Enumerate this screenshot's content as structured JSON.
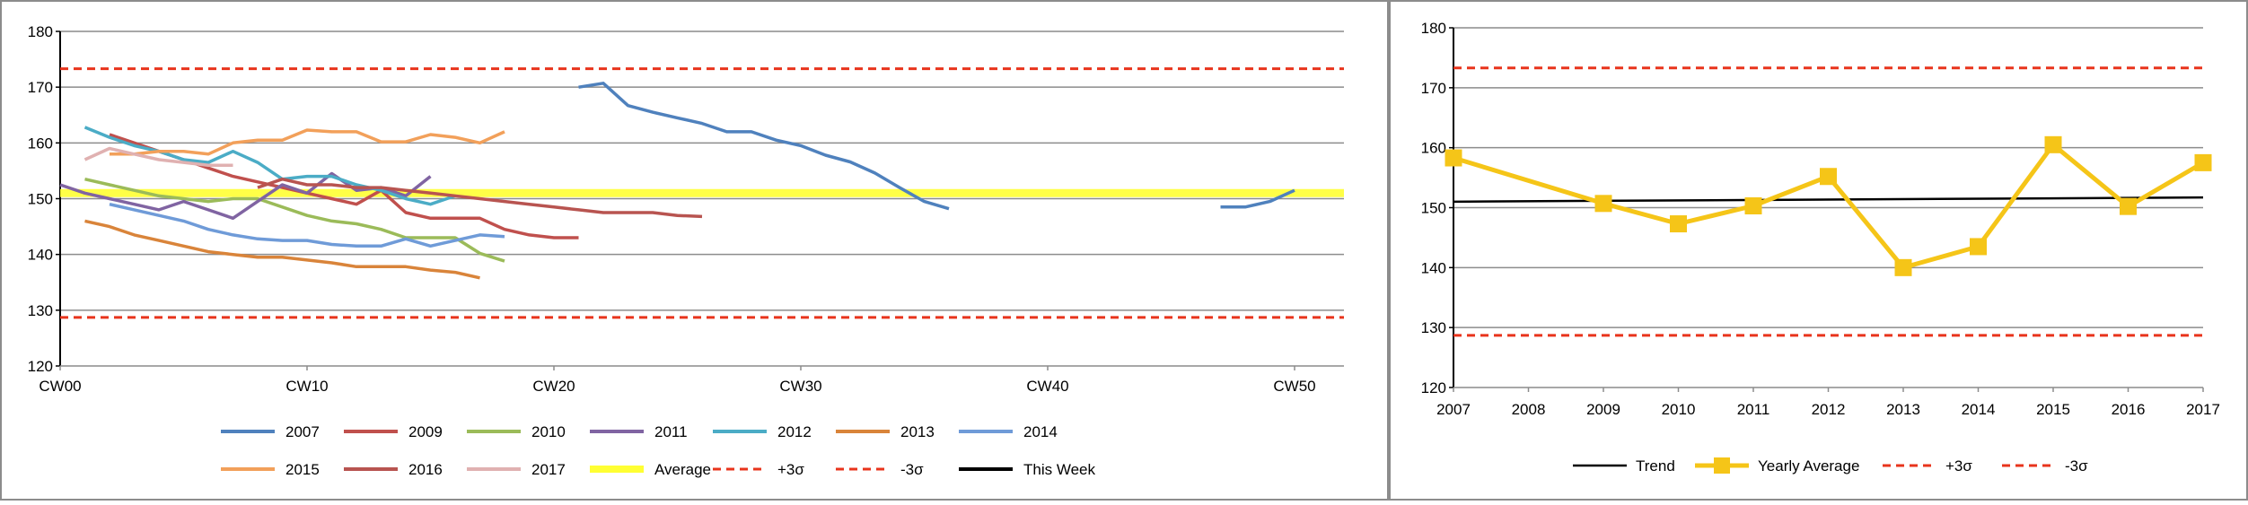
{
  "colors": {
    "grid": "#8c8c8c",
    "axis": "#000000",
    "panel_border": "#8c8c8c",
    "sigma": "#e8341c",
    "average": "#ffff33",
    "trend": "#000000",
    "yearly_average": "#f5c518"
  },
  "chart_data": [
    {
      "type": "line",
      "title": "",
      "xlabel": "",
      "ylabel": "",
      "xlim": [
        0,
        52
      ],
      "ylim": [
        120,
        180
      ],
      "yticks": [
        120,
        130,
        140,
        150,
        160,
        170,
        180
      ],
      "xticks": [
        {
          "x": 0,
          "label": "CW00"
        },
        {
          "x": 10,
          "label": "CW10"
        },
        {
          "x": 20,
          "label": "CW20"
        },
        {
          "x": 30,
          "label": "CW30"
        },
        {
          "x": 40,
          "label": "CW40"
        },
        {
          "x": 50,
          "label": "CW50"
        }
      ],
      "grid": true,
      "legend_position": "bottom",
      "series": [
        {
          "name": "2007",
          "color": "#4f81bd",
          "segments": [
            {
              "x0": 21,
              "values": [
                170,
                170.7,
                166.7,
                165.5,
                164.5,
                163.5,
                162,
                162,
                160.5,
                159.5,
                157.8,
                156.6,
                154.6,
                152,
                149.5,
                148.2
              ]
            },
            {
              "x0": 47,
              "values": [
                148.5,
                148.5,
                149.5,
                151.5
              ]
            }
          ]
        },
        {
          "name": "2009",
          "color": "#c0504d",
          "segments": [
            {
              "x0": 2,
              "values": [
                161.5,
                160,
                158.5,
                157,
                155.5,
                154,
                153,
                152,
                151,
                150,
                149,
                151.5,
                147.5,
                146.5,
                146.5,
                146.5,
                144.5,
                143.5,
                143,
                143
              ]
            }
          ]
        },
        {
          "name": "2010",
          "color": "#9bbb59",
          "segments": [
            {
              "x0": 1,
              "values": [
                153.5,
                152.5,
                151.5,
                150.5,
                150,
                149.5,
                150,
                150,
                148.5,
                147,
                146,
                145.5,
                144.5,
                143,
                143,
                143,
                140.2,
                138.8
              ]
            }
          ]
        },
        {
          "name": "2011",
          "color": "#8064a2",
          "segments": [
            {
              "x0": 0,
              "values": [
                152.5,
                151,
                150,
                149,
                148,
                149.5,
                148,
                146.5,
                149.5,
                152.5,
                151,
                154.5,
                151.5,
                152,
                150.5,
                154
              ]
            }
          ]
        },
        {
          "name": "2012",
          "color": "#4bacc6",
          "segments": [
            {
              "x0": 1,
              "values": [
                162.8,
                161,
                159.5,
                158.5,
                157,
                156.5,
                158.5,
                156.5,
                153.5,
                154,
                154,
                152.5,
                151.5,
                150,
                149,
                150.5
              ]
            }
          ]
        },
        {
          "name": "2013",
          "color": "#d9843a",
          "segments": [
            {
              "x0": 1,
              "values": [
                146,
                145,
                143.5,
                142.5,
                141.5,
                140.5,
                140,
                139.5,
                139.5,
                139,
                138.5,
                137.8,
                137.8,
                137.8,
                137.2,
                136.8,
                135.8
              ]
            }
          ]
        },
        {
          "name": "2014",
          "color": "#6f9bd8",
          "segments": [
            {
              "x0": 2,
              "values": [
                149,
                148,
                147,
                146,
                144.5,
                143.5,
                142.8,
                142.5,
                142.5,
                141.8,
                141.5,
                141.5,
                142.8,
                141.5,
                142.5,
                143.5,
                143.2
              ]
            }
          ]
        },
        {
          "name": "2015",
          "color": "#f2a05a",
          "segments": [
            {
              "x0": 2,
              "values": [
                158,
                158,
                158.5,
                158.5,
                158,
                160,
                160.5,
                160.5,
                162.3,
                162,
                162,
                160.2,
                160.2,
                161.5,
                161,
                160,
                162
              ]
            }
          ]
        },
        {
          "name": "2016",
          "color": "#b85450",
          "segments": [
            {
              "x0": 8,
              "values": [
                152,
                153.5,
                152.5,
                152.5,
                152,
                152,
                151.5,
                151,
                150.5,
                150,
                149.5,
                149,
                148.5,
                148,
                147.5,
                147.5,
                147.5,
                147,
                146.8
              ]
            }
          ]
        },
        {
          "name": "2017",
          "color": "#e0b1b1",
          "segments": [
            {
              "x0": 1,
              "values": [
                157,
                159,
                158,
                157,
                156.5,
                156,
                156
              ]
            }
          ]
        },
        {
          "name": "Average",
          "color": "#ffff33",
          "constant": 151,
          "x_from": 0,
          "x_to": 52,
          "style": "thick"
        },
        {
          "name": "+3σ",
          "color": "#e8341c",
          "constant": 173.3,
          "x_from": 0,
          "x_to": 52,
          "style": "dashed"
        },
        {
          "name": "-3σ",
          "color": "#e8341c",
          "constant": 128.7,
          "x_from": 0,
          "x_to": 52,
          "style": "dashed"
        },
        {
          "name": "This Week",
          "color": "#000000",
          "segments": []
        }
      ]
    },
    {
      "type": "line",
      "title": "",
      "xlabel": "",
      "ylabel": "",
      "xlim": [
        2007,
        2017
      ],
      "ylim": [
        120,
        180
      ],
      "yticks": [
        120,
        130,
        140,
        150,
        160,
        170,
        180
      ],
      "categories": [
        "2007",
        "2008",
        "2009",
        "2010",
        "2011",
        "2012",
        "2013",
        "2014",
        "2015",
        "2016",
        "2017"
      ],
      "grid": true,
      "legend_position": "bottom",
      "series": [
        {
          "name": "Trend",
          "color": "#000000",
          "x": [
            2007,
            2017
          ],
          "values": [
            151,
            151.7
          ]
        },
        {
          "name": "Yearly Average",
          "color": "#f5c518",
          "marker": "square",
          "x": [
            2007,
            2009,
            2010,
            2011,
            2012,
            2013,
            2014,
            2015,
            2016,
            2017
          ],
          "values": [
            158.3,
            150.7,
            147.3,
            150.3,
            155.2,
            140,
            143.5,
            160.5,
            150.2,
            157.5
          ]
        },
        {
          "name": "+3σ",
          "color": "#e8341c",
          "constant": 173.3,
          "style": "dashed"
        },
        {
          "name": "-3σ",
          "color": "#e8341c",
          "constant": 128.7,
          "style": "dashed"
        }
      ]
    }
  ]
}
